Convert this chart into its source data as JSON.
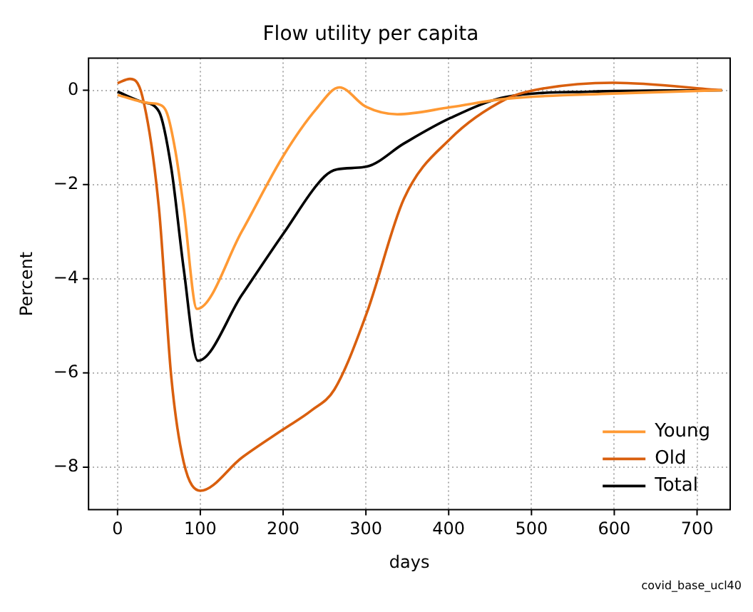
{
  "chart_data": {
    "type": "line",
    "title": "Flow utility per capita",
    "xlabel": "days",
    "ylabel": "Percent",
    "xlim": [
      -35,
      740
    ],
    "ylim": [
      -8.9,
      0.68
    ],
    "xticks": [
      0,
      100,
      200,
      300,
      400,
      500,
      600,
      700
    ],
    "yticks": [
      {
        "value": 0,
        "label": "0"
      },
      {
        "value": -2,
        "label": "−2"
      },
      {
        "value": -4,
        "label": "−4"
      },
      {
        "value": -6,
        "label": "−6"
      },
      {
        "value": -8,
        "label": "−8"
      }
    ],
    "grid": true,
    "legend": "bottom right",
    "marker": "none",
    "line_style": "solid",
    "annotations": [
      "covid_base_ucl40"
    ],
    "series": [
      {
        "name": "Young",
        "color": "#ff9933",
        "x": [
          0,
          37,
          50,
          60,
          70,
          80,
          96,
          150,
          200,
          240,
          268,
          300,
          338,
          402,
          470,
          599,
          730
        ],
        "values": [
          -0.1,
          -0.27,
          -0.3,
          -0.5,
          -1.3,
          -2.5,
          -4.64,
          -3.0,
          -1.4,
          -0.4,
          0.06,
          -0.35,
          -0.51,
          -0.36,
          -0.18,
          -0.07,
          0
        ]
      },
      {
        "name": "Old",
        "color": "#d95f0e",
        "x": [
          0,
          15,
          30,
          50,
          65,
          80,
          100,
          150,
          200,
          234,
          262,
          301,
          346,
          402,
          470,
          503,
          599,
          730
        ],
        "values": [
          0.15,
          0.24,
          -0.13,
          -2.5,
          -6.1,
          -7.9,
          -8.5,
          -7.8,
          -7.2,
          -6.8,
          -6.35,
          -4.73,
          -2.3,
          -1.03,
          -0.18,
          0,
          0.16,
          0
        ]
      },
      {
        "name": "Total",
        "color": "#000000",
        "x": [
          0,
          30,
          50,
          65,
          80,
          97,
          150,
          200,
          250,
          265,
          301,
          346,
          402,
          470,
          571,
          730
        ],
        "values": [
          -0.03,
          -0.25,
          -0.45,
          -1.66,
          -3.8,
          -5.74,
          -4.35,
          -3.05,
          -1.83,
          -1.68,
          -1.62,
          -1.13,
          -0.59,
          -0.14,
          -0.03,
          0
        ]
      }
    ]
  }
}
